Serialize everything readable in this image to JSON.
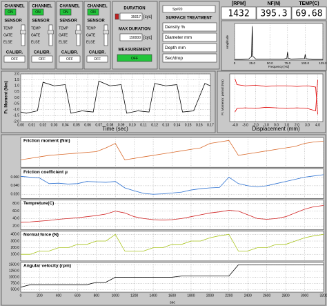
{
  "channels": [
    {
      "title": "CHANNEL",
      "state": "ON",
      "sensor": "SENSOR",
      "options": [
        "TEMP",
        "GATE",
        "ELSE"
      ],
      "calibr": "CALIBR.",
      "calibr_state": "OFF"
    },
    {
      "title": "CHANNEL",
      "state": "ON",
      "sensor": "SENSOR",
      "options": [
        "TEMP",
        "GATE",
        "ELSE"
      ],
      "calibr": "CALIBR.",
      "calibr_state": "OFF"
    },
    {
      "title": "CHANNEL",
      "state": "ON",
      "sensor": "SENSOR",
      "options": [
        "TEMP",
        "GATE",
        "ELSE"
      ],
      "calibr": "CALIBR.",
      "calibr_state": "OFF"
    },
    {
      "title": "CHANNEL",
      "state": "ON",
      "sensor": "SENSOR",
      "options": [
        "TEMP",
        "GATE",
        "ELSE"
      ],
      "calibr": "CALIBR.",
      "calibr_state": "OFF"
    }
  ],
  "duration": {
    "title": "DURATION",
    "value": "35017",
    "unit": "[cyc]",
    "max_title": "MAX DURATION",
    "max_value": "150000",
    "max_unit": "[cyc]",
    "measurement": "MEASUREMENT",
    "measurement_state": "OFF"
  },
  "surface": {
    "sample": "Sp#20",
    "title": "SURFACE TREATMENT",
    "fields": [
      "Density %",
      "Diameter mm",
      "Depth mm",
      "Sec/drop"
    ]
  },
  "readouts": [
    {
      "label": "[RPM]",
      "value": "1432"
    },
    {
      "label": "NF(N)",
      "value": "395.3"
    },
    {
      "label": "TEMP(C)",
      "value": "69.68"
    }
  ],
  "spectrum": {
    "type": "line",
    "ylabel": "Amplitude",
    "xlabel": "Frequency [Hz]",
    "xlim": [
      0,
      125
    ],
    "ylim": [
      0,
      1
    ],
    "xticks": [
      0,
      {
        "value": 25,
        "label": "25.0"
      },
      {
        "value": 50,
        "label": "50.0"
      },
      {
        "value": 75,
        "label": "75.0"
      },
      {
        "value": 100,
        "label": "100.0"
      },
      {
        "value": 125,
        "label": "125.0"
      }
    ],
    "x": [
      0,
      10,
      20,
      24,
      25,
      26,
      30,
      50,
      70,
      74,
      75,
      76,
      80,
      99,
      100,
      101,
      110,
      125
    ],
    "series": [
      {
        "color": "#000000",
        "values": [
          0.02,
          0.02,
          0.03,
          0.1,
          0.92,
          0.1,
          0.03,
          0.03,
          0.03,
          0.05,
          0.22,
          0.05,
          0.03,
          0.04,
          0.16,
          0.04,
          0.02,
          0.02
        ]
      }
    ]
  },
  "moment_time": {
    "type": "line",
    "ylabel": "Fr. Moment (Nm)",
    "xlabel": "Time (sec)",
    "xlim": [
      0,
      0.17
    ],
    "ylim": [
      -2,
      2
    ],
    "yticks": [
      {
        "value": 2,
        "label": "2.0"
      },
      {
        "value": 1.5,
        "label": "1.5"
      },
      {
        "value": 1,
        "label": "1.0"
      },
      {
        "value": 0.5,
        "label": "0.5"
      },
      {
        "value": 0,
        "label": "0.0"
      },
      {
        "value": -0.5,
        "label": "-0.5"
      },
      {
        "value": -1,
        "label": "-1.0"
      },
      {
        "value": -1.5,
        "label": "-1.5"
      },
      {
        "value": -2,
        "label": "-2.0"
      }
    ],
    "xticks": [
      {
        "value": 0,
        "label": "0.00"
      },
      {
        "value": 0.01,
        "label": "0.01"
      },
      {
        "value": 0.02,
        "label": "0.02"
      },
      {
        "value": 0.03,
        "label": "0.03"
      },
      {
        "value": 0.04,
        "label": "0.04"
      },
      {
        "value": 0.05,
        "label": "0.05"
      },
      {
        "value": 0.06,
        "label": "0.06"
      },
      {
        "value": 0.07,
        "label": "0.07"
      },
      {
        "value": 0.08,
        "label": "0.08"
      },
      {
        "value": 0.09,
        "label": "0.09"
      },
      {
        "value": 0.1,
        "label": "0.10"
      },
      {
        "value": 0.11,
        "label": "0.11"
      },
      {
        "value": 0.12,
        "label": "0.12"
      },
      {
        "value": 0.13,
        "label": "0.13"
      },
      {
        "value": 0.14,
        "label": "0.14"
      },
      {
        "value": 0.15,
        "label": "0.15"
      },
      {
        "value": 0.16,
        "label": "0.16"
      },
      {
        "value": 0.17,
        "label": "0.17"
      }
    ],
    "x": [
      0,
      0.005,
      0.015,
      0.02,
      0.03,
      0.04,
      0.045,
      0.055,
      0.065,
      0.07,
      0.08,
      0.09,
      0.095,
      0.105,
      0.115,
      0.12,
      0.13,
      0.14,
      0.145,
      0.155,
      0.165,
      0.17
    ],
    "series": [
      {
        "color": "#000000",
        "values": [
          -1.2,
          -1.3,
          -1.1,
          1.3,
          1.0,
          1.1,
          -1.3,
          -1.1,
          -1.2,
          1.4,
          1.0,
          1.1,
          -1.3,
          -1.1,
          -1.2,
          1.2,
          1.0,
          1.1,
          -1.2,
          -1.1,
          1.2,
          1.0
        ]
      }
    ]
  },
  "moment_displacement": {
    "type": "line",
    "ylabel": "Fr. Moment r. period (Nm)",
    "xlabel": "Displacement (mm)",
    "xlim": [
      -4.5,
      4.5
    ],
    "ylim": [
      -2,
      2
    ],
    "xticks": [
      {
        "value": -4,
        "label": "-4.0"
      },
      {
        "value": -3,
        "label": "-3.0"
      },
      {
        "value": -2,
        "label": "-2.0"
      },
      {
        "value": -1,
        "label": "-1.0"
      },
      {
        "value": 0,
        "label": "0.0"
      },
      {
        "value": 1,
        "label": "1.0"
      },
      {
        "value": 2,
        "label": "2.0"
      },
      {
        "value": 3,
        "label": "3.0"
      },
      {
        "value": 4,
        "label": "4.0"
      }
    ],
    "x": [
      -4,
      -3.8,
      -3,
      -2,
      -1,
      0,
      1,
      2,
      3,
      3.8,
      4
    ],
    "series": [
      {
        "color": "#e00000",
        "values": [
          1.6,
          1.1,
          1.0,
          1.05,
          0.95,
          1.0,
          1.0,
          0.95,
          1.0,
          0.9,
          -1.4
        ]
      },
      {
        "color": "#e00000",
        "values": [
          -1.2,
          -0.9,
          -0.85,
          -0.9,
          -0.8,
          -0.85,
          -0.9,
          -0.85,
          -0.9,
          -1.1,
          1.5
        ]
      }
    ]
  },
  "timeline": {
    "xlabel": "sec",
    "xlim": [
      0,
      3200
    ],
    "xticks": [
      0,
      200,
      400,
      600,
      800,
      1000,
      1200,
      1400,
      1600,
      1800,
      2000,
      2200,
      2400,
      2600,
      2800,
      3000,
      3200
    ],
    "x": [
      0,
      100,
      200,
      300,
      400,
      500,
      600,
      700,
      800,
      900,
      1000,
      1100,
      1200,
      1300,
      1400,
      1500,
      1600,
      1700,
      1800,
      1900,
      2000,
      2100,
      2200,
      2300,
      2400,
      2500,
      2600,
      2700,
      2800,
      2900,
      3000,
      3100,
      3200
    ],
    "panels": [
      {
        "title": "Friction moment (Nm)",
        "color": "#d9692a",
        "ylim": [
          0,
          2
        ],
        "values": [
          0.5,
          0.6,
          0.7,
          0.8,
          0.85,
          0.9,
          0.95,
          1.0,
          1.05,
          1.3,
          1.6,
          0.5,
          0.6,
          0.7,
          0.8,
          0.9,
          1.0,
          1.1,
          1.2,
          1.3,
          1.6,
          1.7,
          1.8,
          0.8,
          0.9,
          1.0,
          1.1,
          1.2,
          1.3,
          1.4,
          1.6,
          1.7,
          1.75
        ]
      },
      {
        "title": "Friction coefficient μ",
        "color": "#2a6fd0",
        "ylim": [
          0.01,
          0.08
        ],
        "yticks": [
          {
            "value": 0.06,
            "label": "0.060"
          },
          {
            "value": 0.04,
            "label": "0.040"
          },
          {
            "value": 0.02,
            "label": "0.020"
          }
        ],
        "values": [
          0.062,
          0.06,
          0.058,
          0.045,
          0.046,
          0.044,
          0.045,
          0.05,
          0.049,
          0.048,
          0.05,
          0.035,
          0.028,
          0.022,
          0.02,
          0.021,
          0.023,
          0.025,
          0.03,
          0.033,
          0.035,
          0.036,
          0.06,
          0.045,
          0.04,
          0.037,
          0.04,
          0.045,
          0.05,
          0.055,
          0.06,
          0.063,
          0.066
        ]
      },
      {
        "title": "Tempreture(C)",
        "color": "#d02020",
        "ylim": [
          10,
          90
        ],
        "yticks": [
          {
            "value": 80,
            "label": "80.0"
          },
          {
            "value": 60,
            "label": "60.0"
          },
          {
            "value": 40,
            "label": "40.0"
          },
          {
            "value": 20,
            "label": "20.0"
          }
        ],
        "values": [
          30,
          31,
          33,
          35,
          38,
          40,
          42,
          45,
          48,
          52,
          60,
          55,
          45,
          40,
          37,
          36,
          37,
          40,
          45,
          50,
          55,
          58,
          62,
          60,
          50,
          40,
          38,
          40,
          45,
          55,
          65,
          72,
          75
        ]
      },
      {
        "title": "Normal force (N)",
        "color": "#a8c41a",
        "ylim": [
          0,
          450
        ],
        "yticks": [
          {
            "value": 400,
            "label": "400.0"
          },
          {
            "value": 300,
            "label": "300.0"
          },
          {
            "value": 200,
            "label": "200.0"
          },
          {
            "value": 100,
            "label": "100.0"
          }
        ],
        "values": [
          100,
          100,
          150,
          150,
          200,
          200,
          250,
          250,
          300,
          300,
          400,
          150,
          150,
          150,
          200,
          200,
          250,
          250,
          300,
          300,
          350,
          380,
          400,
          150,
          150,
          200,
          200,
          250,
          250,
          300,
          350,
          380,
          400
        ]
      },
      {
        "title": "Angular velocity (rpm)",
        "color": "#000000",
        "ylim": [
          400,
          1600
        ],
        "yticks": [
          {
            "value": 1500,
            "label": "1500.0"
          },
          {
            "value": 1250,
            "label": "1250.0"
          },
          {
            "value": 1000,
            "label": "1000.0"
          },
          {
            "value": 750,
            "label": "750.0"
          },
          {
            "value": 500,
            "label": "500.0"
          }
        ],
        "values": [
          600,
          700,
          700,
          700,
          700,
          700,
          700,
          700,
          800,
          800,
          1000,
          1000,
          1000,
          1000,
          1000,
          1000,
          1000,
          1050,
          1050,
          1050,
          1050,
          1050,
          1050,
          1500,
          1500,
          1500,
          1500,
          1500,
          1500,
          1500,
          1500,
          1500,
          1500
        ]
      }
    ]
  }
}
